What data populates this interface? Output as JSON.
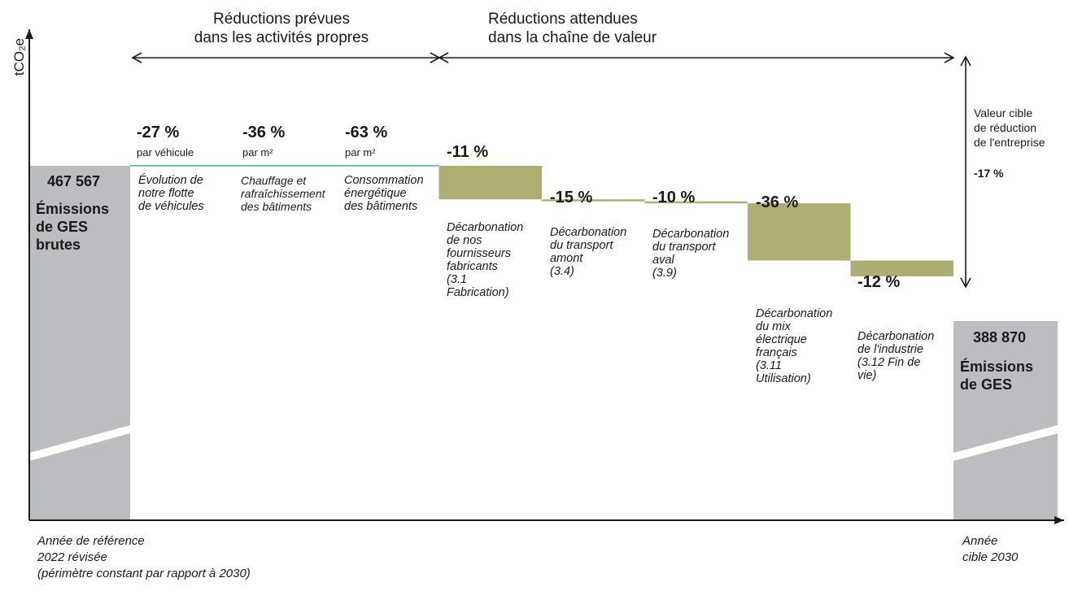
{
  "colors": {
    "gray": "#bcbdc0",
    "olive": "#aeae73",
    "teal": "#4bb3c4",
    "axis": "#1a1a1a"
  },
  "axis": {
    "ylabel": "tCO₂e"
  },
  "headers": {
    "own": "Réductions prévues\ndans les activités propres",
    "chain": "Réductions attendues\ndans la chaîne de valeur"
  },
  "target_note": {
    "label": "Valeur cible\nde réduction\nde l'entreprise",
    "value": "-17 %"
  },
  "footer": {
    "baseline": "Année de référence\n2022 révisée\n(périmètre constant par rapport à 2030)",
    "target": "Année\ncible 2030"
  },
  "chart_data": {
    "type": "waterfall",
    "baseline": {
      "value": "467 567",
      "label": "Émissions\nde GES\nbrutes"
    },
    "target": {
      "value": "388 870",
      "label": "Émissions\nde GES"
    },
    "steps": [
      {
        "pct": "-27 %",
        "unit": "par véhicule",
        "label": "Évolution de\nnotre flotte\nde véhicules",
        "group": "own",
        "reduction": 0
      },
      {
        "pct": "-36 %",
        "unit": "par m²",
        "label": "Chauffage et\nrafraîchissement\ndes bâtiments",
        "group": "own",
        "reduction": 0
      },
      {
        "pct": "-63 %",
        "unit": "par m²",
        "label": "Consommation\nénergétique\ndes bâtiments",
        "group": "own",
        "reduction": 0
      },
      {
        "pct": "-11 %",
        "unit": "",
        "label": "Décarbonation\nde nos\nfournisseurs\nfabricants\n(3.1\nFabrication)",
        "group": "chain",
        "reduction": 17000
      },
      {
        "pct": "-15 %",
        "unit": "",
        "label": "Décarbonation\ndu transport\namont\n(3.4)",
        "group": "chain",
        "reduction": 1000
      },
      {
        "pct": "-10 %",
        "unit": "",
        "label": "Décarbonation\ndu transport\naval\n(3.9)",
        "group": "chain",
        "reduction": 1000
      },
      {
        "pct": "-36 %",
        "unit": "",
        "label": "Décarbonation\ndu mix\nélectrique\nfrançais\n(3.11\nUtilisation)",
        "group": "chain",
        "reduction": 29000
      },
      {
        "pct": "-12 %",
        "unit": "",
        "label": "Décarbonation\nde l'industrie\n(3.12 Fin de\nvie)",
        "group": "chain",
        "reduction": 8000
      }
    ]
  }
}
